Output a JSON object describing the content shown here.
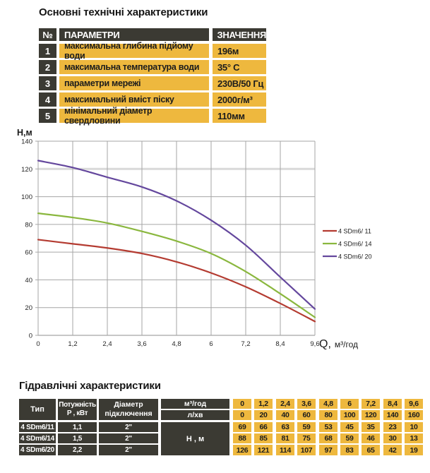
{
  "tech_section": {
    "title": "Основні технічні характеристики",
    "headers": {
      "num": "№",
      "param": "ПАРАМЕТРИ",
      "value": "ЗНАЧЕННЯ"
    },
    "rows": [
      {
        "num": "1",
        "param": "максимальна глибина підйому води",
        "value": "196м"
      },
      {
        "num": "2",
        "param": "максимальна температура води",
        "value": "35° С"
      },
      {
        "num": "3",
        "param": "параметри мережі",
        "value": "230В/50 Гц"
      },
      {
        "num": "4",
        "param": "максимальний вміст піску",
        "value": "2000г/м³"
      },
      {
        "num": "5",
        "param": "мінімальний діаметр свердловини",
        "value": "110мм"
      }
    ]
  },
  "chart_data": {
    "type": "line",
    "x": [
      0,
      1.2,
      2.4,
      3.6,
      4.8,
      6,
      7.2,
      8.4,
      9.6
    ],
    "x_tick_labels": [
      "0",
      "1,2",
      "2,4",
      "3,6",
      "4,8",
      "6",
      "7,2",
      "8,4",
      "9,6"
    ],
    "y_ticks": [
      0,
      20,
      40,
      60,
      80,
      100,
      120,
      140
    ],
    "ylim": [
      0,
      140
    ],
    "xlim": [
      0,
      9.6
    ],
    "ylabel": "Н,м",
    "xlabel_q": "Q,",
    "xlabel_unit": "м³/год",
    "grid": true,
    "highlight_gridline": 120,
    "legend_position": "right",
    "series": [
      {
        "name": "4 SDm6/ 11",
        "color": "#b43b31",
        "values": [
          69,
          66,
          63,
          59,
          53,
          45,
          35,
          23,
          10
        ]
      },
      {
        "name": "4 SDm6/ 14",
        "color": "#8ab73e",
        "values": [
          88,
          85,
          81,
          75,
          68,
          59,
          46,
          30,
          13
        ]
      },
      {
        "name": "4 SDm6/ 20",
        "color": "#64479d",
        "values": [
          126,
          121,
          114,
          107,
          97,
          83,
          65,
          42,
          19
        ]
      }
    ]
  },
  "hydraulic_section": {
    "title": "Гідравлічні характеристики",
    "col_headers": {
      "type": "Тип",
      "power_line1": "Потужність",
      "power_line2": "Р , кВт",
      "diameter_line1": "Діаметр",
      "diameter_line2": "підключення",
      "flow_m3": "м³/год",
      "flow_lmin": "л/хв",
      "head": "Н , м"
    },
    "flow_m3_values": [
      "0",
      "1,2",
      "2,4",
      "3,6",
      "4,8",
      "6",
      "7,2",
      "8,4",
      "9,6"
    ],
    "flow_lmin_values": [
      "0",
      "20",
      "40",
      "60",
      "80",
      "100",
      "120",
      "140",
      "160"
    ],
    "rows": [
      {
        "type": "4 SDm6/11",
        "power": "1,1",
        "diameter": "2\"",
        "heads": [
          "69",
          "66",
          "63",
          "59",
          "53",
          "45",
          "35",
          "23",
          "10"
        ]
      },
      {
        "type": "4 SDm6/14",
        "power": "1,5",
        "diameter": "2\"",
        "heads": [
          "88",
          "85",
          "81",
          "75",
          "68",
          "59",
          "46",
          "30",
          "13"
        ]
      },
      {
        "type": "4 SDm6/20",
        "power": "2,2",
        "diameter": "2\"",
        "heads": [
          "126",
          "121",
          "114",
          "107",
          "97",
          "83",
          "65",
          "42",
          "19"
        ]
      }
    ]
  },
  "colors": {
    "dark_cell": "#3b3a33",
    "yellow_cell": "#eeb83e",
    "grid": "#a6a6a6",
    "grid_highlight": "#d9d9d9"
  }
}
